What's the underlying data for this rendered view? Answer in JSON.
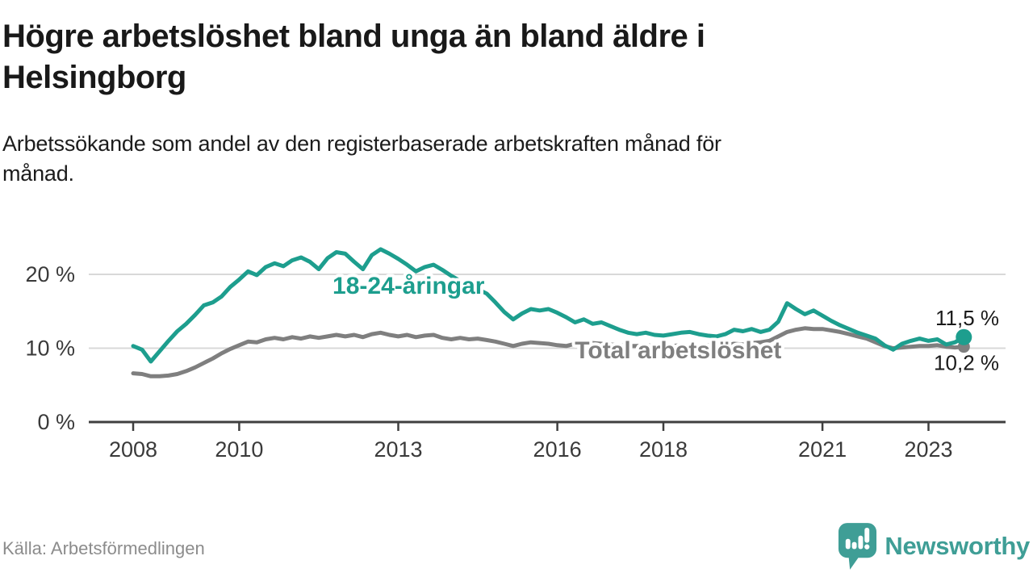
{
  "colors": {
    "youth_line": "#1d9e8e",
    "total_line": "#7f7f7f",
    "grid": "#d8d8d8",
    "axis": "#3f3f3f",
    "text_dark": "#1a1a1a",
    "text_axis": "#3a3a3a",
    "source_text": "#8c8c8c",
    "brand_teal": "#3f9e96"
  },
  "chart_data": {
    "type": "line",
    "title": "Högre arbetslöshet bland unga än bland äldre i Helsingborg",
    "subtitle": "Arbetssökande som andel av den registerbaserade arbetskraften månad för månad.",
    "unit": "%",
    "ylim": [
      0,
      25.5
    ],
    "xlim": [
      2007.2,
      2024.4
    ],
    "grid": "horizontal",
    "legend": "inline-labels",
    "x_start_year": 2008,
    "x_step_months": 2,
    "y_ticks": [
      {
        "value": 0,
        "label": "0 %"
      },
      {
        "value": 10,
        "label": "10 %"
      },
      {
        "value": 20,
        "label": "20 %"
      }
    ],
    "x_ticks": [
      {
        "value": 2008,
        "label": "2008"
      },
      {
        "value": 2010,
        "label": "2010"
      },
      {
        "value": 2013,
        "label": "2013"
      },
      {
        "value": 2016,
        "label": "2016"
      },
      {
        "value": 2018,
        "label": "2018"
      },
      {
        "value": 2021,
        "label": "2021"
      },
      {
        "value": 2023,
        "label": "2023"
      }
    ],
    "series": [
      {
        "key": "total",
        "name": "Total arbetslöshet",
        "color_key": "total_line",
        "end_value_label": "10,2 %",
        "end_label_position": "below",
        "dot_radius": 7.5,
        "values": [
          6.6,
          6.5,
          6.2,
          6.2,
          6.3,
          6.5,
          6.9,
          7.4,
          8.0,
          8.6,
          9.3,
          9.9,
          10.4,
          10.9,
          10.8,
          11.2,
          11.4,
          11.2,
          11.5,
          11.3,
          11.6,
          11.4,
          11.6,
          11.8,
          11.6,
          11.8,
          11.5,
          11.9,
          12.1,
          11.8,
          11.6,
          11.8,
          11.5,
          11.7,
          11.8,
          11.4,
          11.2,
          11.4,
          11.2,
          11.3,
          11.1,
          10.9,
          10.6,
          10.3,
          10.6,
          10.8,
          10.7,
          10.6,
          10.4,
          10.3,
          10.6,
          10.8,
          10.7,
          10.6,
          10.5,
          10.4,
          10.3,
          10.3,
          10.4,
          10.3,
          10.2,
          10.3,
          10.4,
          10.3,
          10.3,
          10.4,
          10.3,
          10.4,
          10.6,
          10.5,
          10.7,
          10.8,
          11.0,
          11.6,
          12.2,
          12.5,
          12.7,
          12.6,
          12.6,
          12.4,
          12.2,
          11.9,
          11.6,
          11.3,
          10.8,
          10.3,
          10.0,
          10.1,
          10.2,
          10.3,
          10.3,
          10.4,
          10.2,
          10.1,
          10.2
        ]
      },
      {
        "key": "youth",
        "name": "18-24-åringar",
        "color_key": "youth_line",
        "end_value_label": "11,5 %",
        "end_label_position": "above",
        "dot_radius": 10,
        "values": [
          10.3,
          9.8,
          8.2,
          9.6,
          11.0,
          12.3,
          13.3,
          14.5,
          15.8,
          16.2,
          17.0,
          18.3,
          19.3,
          20.4,
          19.9,
          21.0,
          21.5,
          21.1,
          21.9,
          22.3,
          21.7,
          20.7,
          22.2,
          23.0,
          22.8,
          21.7,
          20.7,
          22.6,
          23.4,
          22.8,
          22.1,
          21.3,
          20.4,
          21.0,
          21.3,
          20.6,
          19.8,
          19.1,
          18.6,
          18.0,
          17.4,
          16.2,
          14.9,
          13.9,
          14.7,
          15.3,
          15.1,
          15.3,
          14.8,
          14.2,
          13.5,
          13.9,
          13.3,
          13.5,
          13.0,
          12.5,
          12.1,
          11.9,
          12.1,
          11.8,
          11.7,
          11.9,
          12.1,
          12.2,
          11.9,
          11.7,
          11.6,
          11.9,
          12.5,
          12.3,
          12.6,
          12.2,
          12.5,
          13.6,
          16.1,
          15.3,
          14.6,
          15.1,
          14.4,
          13.7,
          13.1,
          12.6,
          12.1,
          11.7,
          11.3,
          10.4,
          9.8,
          10.6,
          11.0,
          11.3,
          11.0,
          11.2,
          10.5,
          10.8,
          11.5
        ]
      }
    ],
    "series_labels": [
      {
        "key": "youth",
        "text": "18-24-åringar",
        "x_year": 2011.76,
        "y_value": 17.35,
        "color_key": "youth_line"
      },
      {
        "key": "total",
        "text": "Total arbetslöshet",
        "x_year": 2016.33,
        "y_value": 8.65,
        "color_key": "total_line"
      }
    ]
  },
  "footer": {
    "source_label": "Källa: Arbetsförmedlingen",
    "brand": "Newsworthy",
    "brand_icon": "newsworthy-speech-bubble-bar-chart-icon"
  }
}
